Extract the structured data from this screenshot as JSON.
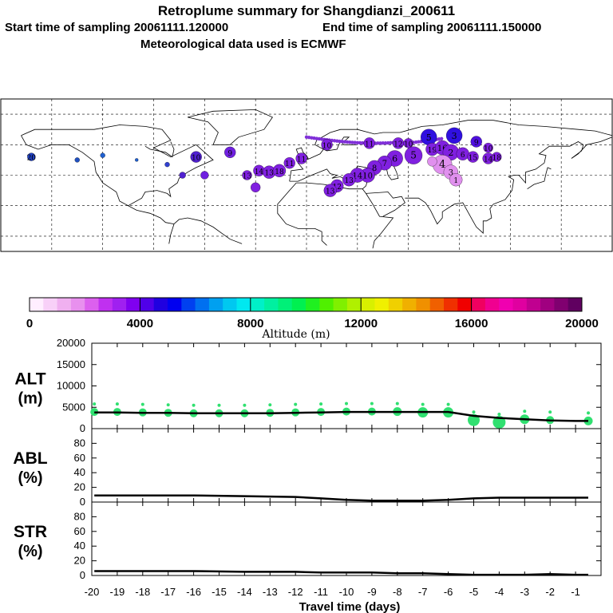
{
  "header": {
    "title": "Retroplume summary for Shangdianzi_200611",
    "start": "Start time of sampling 20061111.120000",
    "end": "End time of sampling 20061111.150000",
    "met": "Meteorological data used is ECMWF"
  },
  "colorbar": {
    "title": "Altitude (m)",
    "ticks": [
      "0",
      "4000",
      "8000",
      "12000",
      "16000",
      "20000"
    ],
    "tick_values": [
      0,
      4000,
      8000,
      12000,
      16000,
      20000
    ],
    "colors": [
      "#ffeeff",
      "#f8d0f8",
      "#f0b0f0",
      "#e890ee",
      "#dc60ee",
      "#c030f0",
      "#a020f0",
      "#8000f0",
      "#5000e8",
      "#2000e0",
      "#0000f0",
      "#0040f0",
      "#0070f0",
      "#00a0f0",
      "#00c8f0",
      "#00e8f0",
      "#00f0c8",
      "#00f0a0",
      "#00f078",
      "#00f050",
      "#20f020",
      "#50f000",
      "#80f000",
      "#b0f000",
      "#d8f000",
      "#f0f000",
      "#f0d000",
      "#f0b000",
      "#f09000",
      "#f06000",
      "#f03000",
      "#f00000",
      "#f00060",
      "#f00090",
      "#f000b0",
      "#e000a0",
      "#c00090",
      "#a00080",
      "#800070",
      "#600060"
    ]
  },
  "chart_data": [
    {
      "type": "line",
      "panel": "ALT",
      "ylabel": "ALT (m)",
      "ylabel_parts": [
        "ALT",
        "(m)"
      ],
      "ylim": [
        0,
        20000
      ],
      "yticks": [
        "20000",
        "15000",
        "10000",
        "5000",
        "0"
      ],
      "ytick_values": [
        20000,
        15000,
        10000,
        5000,
        0
      ],
      "x": [
        -19.9,
        -19,
        -18,
        -17,
        -16,
        -15,
        -14,
        -13,
        -12,
        -11,
        -10,
        -9,
        -8,
        -7,
        -6,
        -5,
        -4,
        -3,
        -2,
        -1,
        -0.5
      ],
      "values": [
        3800,
        3800,
        3700,
        3700,
        3600,
        3600,
        3600,
        3600,
        3700,
        3800,
        3900,
        3900,
        3900,
        3900,
        3900,
        3000,
        2500,
        2200,
        1900,
        1800,
        1800
      ],
      "points": [
        {
          "x": -19.9,
          "y": 3900,
          "size": 1.0
        },
        {
          "x": -19,
          "y": 3900,
          "size": 1.0
        },
        {
          "x": -18,
          "y": 3800,
          "size": 1.0
        },
        {
          "x": -17,
          "y": 3700,
          "size": 1.0
        },
        {
          "x": -16,
          "y": 3600,
          "size": 1.0
        },
        {
          "x": -15,
          "y": 3600,
          "size": 1.0
        },
        {
          "x": -14,
          "y": 3600,
          "size": 1.0
        },
        {
          "x": -13,
          "y": 3700,
          "size": 1.0
        },
        {
          "x": -12,
          "y": 3800,
          "size": 1.0
        },
        {
          "x": -11,
          "y": 3900,
          "size": 1.0
        },
        {
          "x": -10,
          "y": 4000,
          "size": 1.0
        },
        {
          "x": -9,
          "y": 4000,
          "size": 1.0
        },
        {
          "x": -8,
          "y": 4000,
          "size": 1.1
        },
        {
          "x": -7,
          "y": 3800,
          "size": 1.3
        },
        {
          "x": -6,
          "y": 3800,
          "size": 1.3
        },
        {
          "x": -5,
          "y": 2000,
          "size": 1.5
        },
        {
          "x": -4,
          "y": 1500,
          "size": 1.6
        },
        {
          "x": -3,
          "y": 2200,
          "size": 1.2
        },
        {
          "x": -2,
          "y": 2000,
          "size": 1.0
        },
        {
          "x": -0.5,
          "y": 1800,
          "size": 1.1
        }
      ]
    },
    {
      "type": "line",
      "panel": "ABL",
      "ylabel": "ABL (%)",
      "ylabel_parts": [
        "ABL",
        "(%)"
      ],
      "ylim": [
        0,
        100
      ],
      "yticks": [
        "80",
        "60",
        "40",
        "20",
        "0"
      ],
      "ytick_values": [
        80,
        60,
        40,
        20,
        0
      ],
      "x": [
        -19.9,
        -18,
        -16,
        -14,
        -12,
        -11,
        -10,
        -9,
        -8,
        -7,
        -6,
        -5,
        -4,
        -3,
        -2,
        -1,
        -0.5
      ],
      "values": [
        9,
        9,
        9,
        8,
        7,
        5,
        3,
        2,
        2,
        2,
        3,
        5,
        6,
        6,
        6,
        6,
        6
      ]
    },
    {
      "type": "line",
      "panel": "STR",
      "ylabel": "STR (%)",
      "ylabel_parts": [
        "STR",
        "(%)"
      ],
      "ylim": [
        0,
        100
      ],
      "yticks": [
        "80",
        "60",
        "40",
        "20",
        "0"
      ],
      "ytick_values": [
        80,
        60,
        40,
        20,
        0
      ],
      "x": [
        -19.9,
        -18,
        -16,
        -14,
        -12,
        -11,
        -10,
        -9,
        -8,
        -7,
        -6,
        -5,
        -4,
        -3,
        -2,
        -1,
        -0.5
      ],
      "values": [
        6,
        6,
        6,
        5,
        5,
        4,
        4,
        4,
        3,
        3,
        2,
        1,
        1,
        1,
        2,
        1,
        1
      ]
    }
  ],
  "xaxis": {
    "label": "Travel time (days)",
    "xlim": [
      -20,
      0
    ],
    "ticks": [
      "-20",
      "-19",
      "-18",
      "-17",
      "-16",
      "-15",
      "-14",
      "-13",
      "-12",
      "-11",
      "-10",
      "-9",
      "-8",
      "-7",
      "-6",
      "-5",
      "-4",
      "-3",
      "-2",
      "-1"
    ],
    "tick_values": [
      -20,
      -19,
      -18,
      -17,
      -16,
      -15,
      -14,
      -13,
      -12,
      -11,
      -10,
      -9,
      -8,
      -7,
      -6,
      -5,
      -4,
      -3,
      -2,
      -1
    ]
  },
  "map": {
    "markers": [
      {
        "lon": -162,
        "lat": 52,
        "label": "20",
        "color": "#2040c0",
        "r": 5
      },
      {
        "lon": -135,
        "lat": 50,
        "label": "",
        "color": "#2050c0",
        "r": 3
      },
      {
        "lon": -120,
        "lat": 53,
        "label": "",
        "color": "#2060d0",
        "r": 3
      },
      {
        "lon": -100,
        "lat": 50,
        "label": "",
        "color": "#2060d0",
        "r": 2
      },
      {
        "lon": -82,
        "lat": 47,
        "label": "",
        "color": "#3040d0",
        "r": 3
      },
      {
        "lon": -65,
        "lat": 52,
        "label": "10",
        "color": "#5020d0",
        "r": 7
      },
      {
        "lon": -45,
        "lat": 55,
        "label": "9",
        "color": "#7020e0",
        "r": 7
      },
      {
        "lon": -60,
        "lat": 40,
        "label": "",
        "color": "#7020e0",
        "r": 5
      },
      {
        "lon": -73,
        "lat": 40,
        "label": "",
        "color": "#5020d0",
        "r": 4
      },
      {
        "lon": -35,
        "lat": 40,
        "label": "13",
        "color": "#8020e0",
        "r": 6
      },
      {
        "lon": -28,
        "lat": 43,
        "label": "14",
        "color": "#8020e0",
        "r": 7
      },
      {
        "lon": -22,
        "lat": 42,
        "label": "13",
        "color": "#8020e0",
        "r": 8
      },
      {
        "lon": -16,
        "lat": 43,
        "label": "18",
        "color": "#8020e0",
        "r": 8
      },
      {
        "lon": -10,
        "lat": 48,
        "label": "11",
        "color": "#8020e0",
        "r": 7
      },
      {
        "lon": -3,
        "lat": 51,
        "label": "11",
        "color": "#8020e0",
        "r": 7
      },
      {
        "lon": -30,
        "lat": 32,
        "label": "",
        "color": "#8020e0",
        "r": 6
      },
      {
        "lon": 12,
        "lat": 60,
        "label": "10",
        "color": "#8020e0",
        "r": 7
      },
      {
        "lon": 37,
        "lat": 61,
        "label": "11",
        "color": "#8020e0",
        "r": 7
      },
      {
        "lon": 54,
        "lat": 61,
        "label": "12",
        "color": "#8020e0",
        "r": 7
      },
      {
        "lon": 60,
        "lat": 61,
        "label": "10",
        "color": "#8020e0",
        "r": 6
      },
      {
        "lon": 72,
        "lat": 65,
        "label": "5",
        "color": "#3010e0",
        "r": 10
      },
      {
        "lon": 87,
        "lat": 66,
        "label": "3",
        "color": "#3010e0",
        "r": 10
      },
      {
        "lon": 100,
        "lat": 62,
        "label": "9",
        "color": "#5010e0",
        "r": 7
      },
      {
        "lon": 74,
        "lat": 57,
        "label": "19",
        "color": "#8020e0",
        "r": 8
      },
      {
        "lon": 80,
        "lat": 58,
        "label": "16",
        "color": "#8020e0",
        "r": 9
      },
      {
        "lon": 85,
        "lat": 55,
        "label": "2",
        "color": "#8020e0",
        "r": 10
      },
      {
        "lon": 92,
        "lat": 54,
        "label": "6",
        "color": "#8020e0",
        "r": 8
      },
      {
        "lon": 98,
        "lat": 52,
        "label": "15",
        "color": "#8020e0",
        "r": 7
      },
      {
        "lon": 107,
        "lat": 58,
        "label": "10",
        "color": "#8020e0",
        "r": 6
      },
      {
        "lon": 107,
        "lat": 51,
        "label": "14",
        "color": "#8020e0",
        "r": 7
      },
      {
        "lon": 112,
        "lat": 52,
        "label": "18",
        "color": "#8020e0",
        "r": 6
      },
      {
        "lon": 63,
        "lat": 53,
        "label": "5",
        "color": "#8020e0",
        "r": 11
      },
      {
        "lon": 52,
        "lat": 51,
        "label": "6",
        "color": "#8020e0",
        "r": 10
      },
      {
        "lon": 46,
        "lat": 48,
        "label": "7",
        "color": "#8020e0",
        "r": 9
      },
      {
        "lon": 40,
        "lat": 45,
        "label": "8",
        "color": "#8020e0",
        "r": 9
      },
      {
        "lon": 36,
        "lat": 40,
        "label": "10",
        "color": "#8020e0",
        "r": 9
      },
      {
        "lon": 30,
        "lat": 40,
        "label": "14",
        "color": "#8020e0",
        "r": 9
      },
      {
        "lon": 25,
        "lat": 37,
        "label": "13",
        "color": "#8020e0",
        "r": 8
      },
      {
        "lon": 18,
        "lat": 33,
        "label": "12",
        "color": "#8020e0",
        "r": 8
      },
      {
        "lon": 14,
        "lat": 30,
        "label": "13",
        "color": "#8020e0",
        "r": 8
      },
      {
        "lon": 80,
        "lat": 47,
        "label": "4",
        "color": "#e090ee",
        "r": 12
      },
      {
        "lon": 85,
        "lat": 42,
        "label": "3",
        "color": "#e090ee",
        "r": 9
      },
      {
        "lon": 88,
        "lat": 37,
        "label": "1",
        "color": "#e090ee",
        "r": 8
      },
      {
        "lon": 74,
        "lat": 49,
        "label": "",
        "color": "#e090ee",
        "r": 6
      }
    ]
  }
}
